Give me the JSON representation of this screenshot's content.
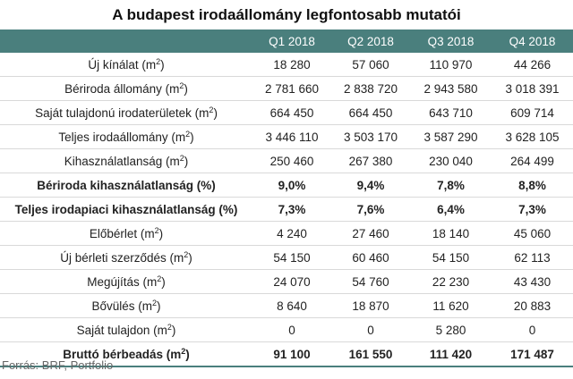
{
  "chart_data": {
    "type": "table",
    "title": "A budapest irodaállomány legfontosabb mutatói",
    "columns": [
      "",
      "Q1 2018",
      "Q2 2018",
      "Q3 2018",
      "Q4 2018"
    ],
    "rows": [
      {
        "label": "Új kínálat (m",
        "sup": "2",
        "suffix": ")",
        "bold": false,
        "values": [
          "18 280",
          "57 060",
          "110 970",
          "44 266"
        ]
      },
      {
        "label": "Bériroda állomány (m",
        "sup": "2",
        "suffix": ")",
        "bold": false,
        "values": [
          "2 781 660",
          "2 838 720",
          "2 943 580",
          "3 018 391"
        ]
      },
      {
        "label": "Saját tulajdonú irodaterületek (m",
        "sup": "2",
        "suffix": ")",
        "bold": false,
        "values": [
          "664 450",
          "664 450",
          "643 710",
          "609 714"
        ]
      },
      {
        "label": "Teljes irodaállomány (m",
        "sup": "2",
        "suffix": ")",
        "bold": false,
        "values": [
          "3 446 110",
          "3 503 170",
          "3 587 290",
          "3 628 105"
        ]
      },
      {
        "label": "Kihasználatlanság (m",
        "sup": "2",
        "suffix": ")",
        "bold": false,
        "values": [
          "250 460",
          "267 380",
          "230 040",
          "264 499"
        ]
      },
      {
        "label": "Bériroda kihasználatlanság (%)",
        "sup": "",
        "suffix": "",
        "bold": true,
        "values": [
          "9,0%",
          "9,4%",
          "7,8%",
          "8,8%"
        ]
      },
      {
        "label": "Teljes irodapiaci kihasználatlanság (%)",
        "sup": "",
        "suffix": "",
        "bold": true,
        "values": [
          "7,3%",
          "7,6%",
          "6,4%",
          "7,3%"
        ]
      },
      {
        "label": "Előbérlet (m",
        "sup": "2",
        "suffix": ")",
        "bold": false,
        "values": [
          "4 240",
          "27 460",
          "18 140",
          "45 060"
        ]
      },
      {
        "label": "Új bérleti szerződés (m",
        "sup": "2",
        "suffix": ")",
        "bold": false,
        "values": [
          "54 150",
          "60 460",
          "54 150",
          "62 113"
        ]
      },
      {
        "label": "Megújítás (m",
        "sup": "2",
        "suffix": ")",
        "bold": false,
        "values": [
          "24 070",
          "54 760",
          "22 230",
          "43 430"
        ]
      },
      {
        "label": "Bővülés (m",
        "sup": "2",
        "suffix": ")",
        "bold": false,
        "values": [
          "8 640",
          "18 870",
          "11 620",
          "20 883"
        ]
      },
      {
        "label": "Saját tulajdon (m",
        "sup": "2",
        "suffix": ")",
        "bold": false,
        "values": [
          "0",
          "0",
          "5 280",
          "0"
        ]
      },
      {
        "label": "Bruttó bérbeadás (m",
        "sup": "2",
        "suffix": ")",
        "bold": true,
        "values": [
          "91 100",
          "161 550",
          "111 420",
          "171 487"
        ]
      }
    ],
    "header_color": "#4a7f7d"
  },
  "source": "Forrás: BRF, Portfolio"
}
